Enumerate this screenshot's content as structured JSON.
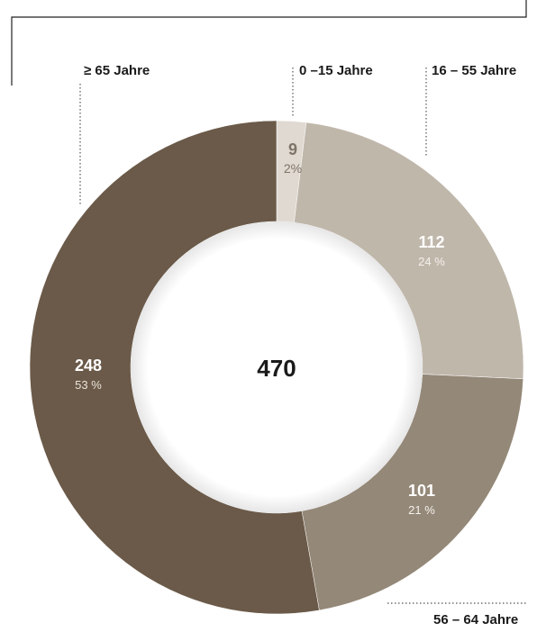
{
  "chart_data": {
    "type": "pie",
    "total": "470",
    "slices": [
      {
        "name": "0 –15 Jahre",
        "value": 9,
        "percent_label": "2%",
        "color": "#e0d9d1"
      },
      {
        "name": "16 – 55 Jahre",
        "value": 112,
        "percent_label": "24 %",
        "color": "#c0b7ab"
      },
      {
        "name": "56 – 64 Jahre",
        "value": 101,
        "percent_label": "21 %",
        "color": "#948878"
      },
      {
        "name": "≥ 65 Jahre",
        "value": 248,
        "percent_label": "53 %",
        "color": "#6b5a49"
      }
    ]
  }
}
